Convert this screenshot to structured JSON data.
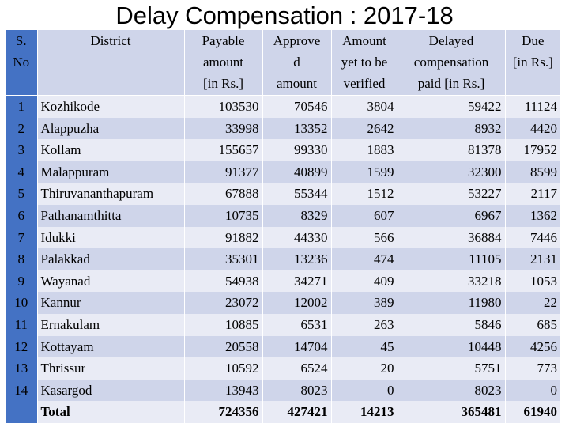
{
  "title": "Delay Compensation : 2017-18",
  "table": {
    "headers": {
      "sno": [
        "S.",
        "No"
      ],
      "district": [
        "District"
      ],
      "payable": [
        "Payable",
        "amount",
        "[in Rs.]"
      ],
      "approved": [
        "Approve",
        "d",
        "amount"
      ],
      "to_verify": [
        "Amount",
        "yet to be",
        "verified"
      ],
      "delayed": [
        "Delayed",
        "compensation",
        "paid [in Rs.]"
      ],
      "due": [
        "Due",
        "[in Rs.]"
      ]
    },
    "rows": [
      {
        "sno": "1",
        "district": "Kozhikode",
        "payable": "103530",
        "approved": "70546",
        "to_verify": "3804",
        "delayed": "59422",
        "due": "11124"
      },
      {
        "sno": "2",
        "district": "Alappuzha",
        "payable": "33998",
        "approved": "13352",
        "to_verify": "2642",
        "delayed": "8932",
        "due": "4420"
      },
      {
        "sno": "3",
        "district": "Kollam",
        "payable": "155657",
        "approved": "99330",
        "to_verify": "1883",
        "delayed": "81378",
        "due": "17952"
      },
      {
        "sno": "4",
        "district": "Malappuram",
        "payable": "91377",
        "approved": "40899",
        "to_verify": "1599",
        "delayed": "32300",
        "due": "8599"
      },
      {
        "sno": "5",
        "district": "Thiruvananthapuram",
        "payable": "67888",
        "approved": "55344",
        "to_verify": "1512",
        "delayed": "53227",
        "due": "2117"
      },
      {
        "sno": "6",
        "district": "Pathanamthitta",
        "payable": "10735",
        "approved": "8329",
        "to_verify": "607",
        "delayed": "6967",
        "due": "1362"
      },
      {
        "sno": "7",
        "district": "Idukki",
        "payable": "91882",
        "approved": "44330",
        "to_verify": "566",
        "delayed": "36884",
        "due": "7446"
      },
      {
        "sno": "8",
        "district": "Palakkad",
        "payable": "35301",
        "approved": "13236",
        "to_verify": "474",
        "delayed": "11105",
        "due": "2131"
      },
      {
        "sno": "9",
        "district": "Wayanad",
        "payable": "54938",
        "approved": "34271",
        "to_verify": "409",
        "delayed": "33218",
        "due": "1053"
      },
      {
        "sno": "10",
        "district": "Kannur",
        "payable": "23072",
        "approved": "12002",
        "to_verify": "389",
        "delayed": "11980",
        "due": "22"
      },
      {
        "sno": "11",
        "district": "Ernakulam",
        "payable": "10885",
        "approved": "6531",
        "to_verify": "263",
        "delayed": "5846",
        "due": "685"
      },
      {
        "sno": "12",
        "district": "Kottayam",
        "payable": "20558",
        "approved": "14704",
        "to_verify": "45",
        "delayed": "10448",
        "due": "4256"
      },
      {
        "sno": "13",
        "district": "Thrissur",
        "payable": "10592",
        "approved": "6524",
        "to_verify": "20",
        "delayed": "5751",
        "due": "773"
      },
      {
        "sno": "14",
        "district": "Kasargod",
        "payable": "13943",
        "approved": "8023",
        "to_verify": "0",
        "delayed": "8023",
        "due": "0"
      }
    ],
    "total": {
      "label": "Total",
      "payable": "724356",
      "approved": "427421",
      "to_verify": "14213",
      "delayed": "365481",
      "due": "61940"
    }
  }
}
